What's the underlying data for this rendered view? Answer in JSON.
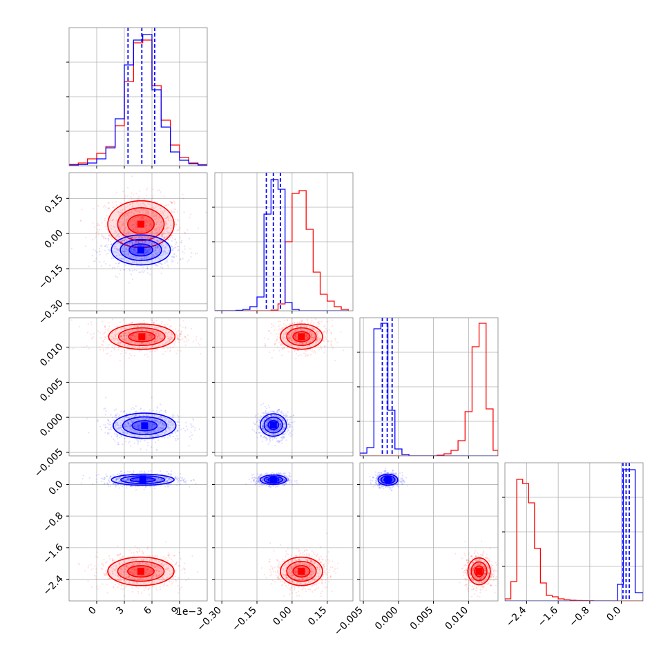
{
  "chart_data": {
    "type": "corner",
    "offset_text": "1e−3",
    "series_colors": {
      "blue": "#0000ff",
      "red": "#ff0000"
    },
    "params": [
      {
        "index": 0,
        "range": [
          -3,
          12
        ],
        "ticks": [
          0,
          3,
          6,
          9
        ],
        "tick_labels": [
          "0",
          "3",
          "6",
          "9"
        ]
      },
      {
        "index": 1,
        "range": [
          -0.33,
          0.26
        ],
        "ticks": [
          -0.3,
          -0.15,
          0.0,
          0.15
        ],
        "tick_labels": [
          "−0.30",
          "−0.15",
          "0.00",
          "0.15"
        ]
      },
      {
        "index": 2,
        "range": [
          -0.0055,
          0.0142
        ],
        "ticks": [
          -0.005,
          0.0,
          0.005,
          0.01
        ],
        "tick_labels": [
          "−0.005",
          "0.000",
          "0.005",
          "0.010"
        ]
      },
      {
        "index": 3,
        "range": [
          -2.95,
          0.55
        ],
        "ticks": [
          -2.4,
          -1.6,
          -0.8,
          0.0
        ],
        "tick_labels": [
          "−2.4",
          "−1.6",
          "−0.8",
          "0.0"
        ]
      }
    ],
    "hist_scale": [
      1,
      1,
      1,
      1
    ],
    "histograms": [
      {
        "param": 0,
        "blue": {
          "edges": [
            -3,
            -2,
            -1,
            0,
            1,
            2,
            3,
            4,
            5,
            6,
            7,
            8,
            9,
            10,
            11,
            12
          ],
          "counts": [
            0.005,
            0.008,
            0.02,
            0.05,
            0.13,
            0.34,
            0.73,
            0.91,
            0.95,
            0.55,
            0.28,
            0.1,
            0.04,
            0.015,
            0.005
          ]
        },
        "red": {
          "edges": [
            -3,
            -2,
            -1,
            0,
            1,
            2,
            3,
            4,
            5,
            6,
            7,
            8,
            9,
            10,
            11,
            12
          ],
          "counts": [
            0.01,
            0.02,
            0.05,
            0.09,
            0.14,
            0.29,
            0.61,
            0.89,
            0.91,
            0.58,
            0.33,
            0.15,
            0.06,
            0.02,
            0.008
          ]
        },
        "quantiles_blue": [
          3.4,
          4.9,
          6.3
        ]
      },
      {
        "param": 1,
        "blue": {
          "edges": [
            -0.33,
            -0.3,
            -0.27,
            -0.24,
            -0.21,
            -0.18,
            -0.15,
            -0.12,
            -0.09,
            -0.06,
            -0.03,
            0.0,
            0.03,
            0.06,
            0.09,
            0.12,
            0.15,
            0.18,
            0.21,
            0.24
          ],
          "counts": [
            0,
            0,
            0,
            0.003,
            0.01,
            0.03,
            0.1,
            0.7,
            0.95,
            0.88,
            0.06,
            0.01,
            0,
            0,
            0,
            0,
            0,
            0,
            0
          ]
        },
        "red": {
          "edges": [
            -0.33,
            -0.3,
            -0.27,
            -0.24,
            -0.21,
            -0.18,
            -0.15,
            -0.12,
            -0.09,
            -0.06,
            -0.03,
            0.0,
            0.03,
            0.06,
            0.09,
            0.12,
            0.15,
            0.18,
            0.21,
            0.24
          ],
          "counts": [
            0,
            0,
            0,
            0,
            0,
            0,
            0,
            0,
            0.005,
            0.05,
            0.5,
            0.85,
            0.87,
            0.59,
            0.28,
            0.12,
            0.07,
            0.03,
            0.01
          ]
        },
        "quantiles_blue": [
          -0.11,
          -0.08,
          -0.05
        ]
      },
      {
        "param": 2,
        "blue": {
          "edges": [
            -0.0055,
            -0.0045,
            -0.0035,
            -0.0025,
            -0.0015,
            -0.0005,
            0.0005,
            0.0015,
            0.0025,
            0.0035,
            0.0045,
            0.0055,
            0.0065,
            0.0075,
            0.0085,
            0.0095,
            0.0105,
            0.0115,
            0.0125,
            0.0135,
            0.0142
          ],
          "counts": [
            0.02,
            0.06,
            0.92,
            0.96,
            0.33,
            0.05,
            0.01,
            0,
            0,
            0,
            0,
            0,
            0,
            0,
            0,
            0,
            0,
            0,
            0,
            0
          ]
        },
        "red": {
          "edges": [
            -0.0055,
            -0.0045,
            -0.0035,
            -0.0025,
            -0.0015,
            -0.0005,
            0.0005,
            0.0015,
            0.0025,
            0.0035,
            0.0045,
            0.0055,
            0.0065,
            0.0075,
            0.0085,
            0.0095,
            0.0105,
            0.0115,
            0.0125,
            0.0135,
            0.0142
          ],
          "counts": [
            0,
            0,
            0,
            0,
            0,
            0,
            0,
            0,
            0,
            0,
            0,
            0.005,
            0.015,
            0.04,
            0.11,
            0.32,
            0.79,
            0.96,
            0.34,
            0.04
          ]
        },
        "quantiles_blue": [
          -0.0023,
          -0.0016,
          -0.0009
        ]
      },
      {
        "param": 3,
        "blue": {
          "edges": [
            -2.95,
            -2.8,
            -2.65,
            -2.5,
            -2.35,
            -2.2,
            -2.05,
            -1.9,
            -1.75,
            -1.6,
            -1.45,
            -1.3,
            -1.15,
            -1.0,
            -0.85,
            -0.7,
            -0.55,
            -0.4,
            -0.25,
            -0.1,
            0.05,
            0.2,
            0.35,
            0.55
          ],
          "counts": [
            0,
            0,
            0,
            0,
            0,
            0,
            0,
            0,
            0,
            0,
            0,
            0,
            0,
            0,
            0,
            0,
            0,
            0,
            0,
            0.12,
            0.95,
            0.95,
            0.06
          ]
        },
        "red": {
          "edges": [
            -2.95,
            -2.8,
            -2.65,
            -2.5,
            -2.35,
            -2.2,
            -2.05,
            -1.9,
            -1.75,
            -1.6,
            -1.45,
            -1.3,
            -1.15,
            -1.0,
            -0.85,
            -0.7,
            -0.55,
            -0.4,
            -0.25,
            -0.1,
            0.05,
            0.2,
            0.35,
            0.55
          ],
          "counts": [
            0.015,
            0.14,
            0.88,
            0.85,
            0.71,
            0.38,
            0.13,
            0.04,
            0.03,
            0.015,
            0.008,
            0.005,
            0.003,
            0.002,
            0.001,
            0,
            0,
            0,
            0,
            0,
            0,
            0,
            0
          ]
        },
        "quantiles_blue": [
          0.04,
          0.12,
          0.2
        ]
      }
    ],
    "scatter_panels": [
      {
        "row": 1,
        "col": 0,
        "blue": {
          "center": [
            4.8,
            -0.07
          ],
          "sd": [
            1.6,
            0.032
          ]
        },
        "red": {
          "center": [
            4.8,
            0.04
          ],
          "sd": [
            1.8,
            0.05
          ]
        }
      },
      {
        "row": 2,
        "col": 0,
        "blue": {
          "center": [
            5.2,
            -0.0012
          ],
          "sd": [
            1.7,
            0.0009
          ]
        },
        "red": {
          "center": [
            4.9,
            0.0115
          ],
          "sd": [
            1.8,
            0.0009
          ]
        }
      },
      {
        "row": 2,
        "col": 1,
        "blue": {
          "center": [
            -0.08,
            -0.0011
          ],
          "sd": [
            0.028,
            0.0008
          ]
        },
        "red": {
          "center": [
            0.04,
            0.0115
          ],
          "sd": [
            0.045,
            0.0009
          ]
        }
      },
      {
        "row": 3,
        "col": 0,
        "blue": {
          "center": [
            5.0,
            0.12
          ],
          "sd": [
            1.7,
            0.07
          ]
        },
        "red": {
          "center": [
            4.8,
            -2.2
          ],
          "sd": [
            1.8,
            0.18
          ]
        }
      },
      {
        "row": 3,
        "col": 1,
        "blue": {
          "center": [
            -0.08,
            0.12
          ],
          "sd": [
            0.028,
            0.06
          ]
        },
        "red": {
          "center": [
            0.04,
            -2.2
          ],
          "sd": [
            0.045,
            0.18
          ]
        }
      },
      {
        "row": 3,
        "col": 2,
        "blue": {
          "center": [
            -0.0015,
            0.12
          ],
          "sd": [
            0.0007,
            0.07
          ]
        },
        "red": {
          "center": [
            0.0115,
            -2.2
          ],
          "sd": [
            0.0008,
            0.17
          ]
        }
      }
    ]
  }
}
